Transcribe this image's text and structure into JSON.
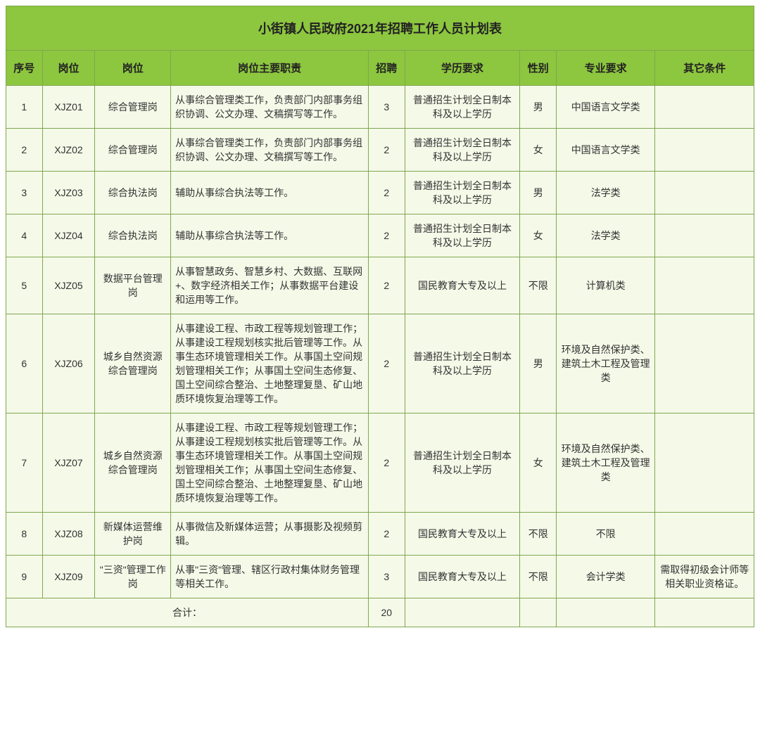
{
  "title": "小街镇人民政府2021年招聘工作人员计划表",
  "columns": [
    "序号",
    "岗位",
    "岗位",
    "岗位主要职责",
    "招聘",
    "学历要求",
    "性别",
    "专业要求",
    "其它条件"
  ],
  "rows": [
    {
      "seq": "1",
      "code": "XJZ01",
      "post": "综合管理岗",
      "duty": "从事综合管理类工作，负责部门内部事务组织协调、公文办理、文稿撰写等工作。",
      "num": "3",
      "edu": "普通招生计划全日制本科及以上学历",
      "sex": "男",
      "major": "中国语言文学类",
      "other": ""
    },
    {
      "seq": "2",
      "code": "XJZ02",
      "post": "综合管理岗",
      "duty": "从事综合管理类工作，负责部门内部事务组织协调、公文办理、文稿撰写等工作。",
      "num": "2",
      "edu": "普通招生计划全日制本科及以上学历",
      "sex": "女",
      "major": "中国语言文学类",
      "other": ""
    },
    {
      "seq": "3",
      "code": "XJZ03",
      "post": "综合执法岗",
      "duty": "辅助从事综合执法等工作。",
      "num": "2",
      "edu": "普通招生计划全日制本科及以上学历",
      "sex": "男",
      "major": "法学类",
      "other": ""
    },
    {
      "seq": "4",
      "code": "XJZ04",
      "post": "综合执法岗",
      "duty": "辅助从事综合执法等工作。",
      "num": "2",
      "edu": "普通招生计划全日制本科及以上学历",
      "sex": "女",
      "major": "法学类",
      "other": ""
    },
    {
      "seq": "5",
      "code": "XJZ05",
      "post": "数据平台管理岗",
      "duty": "从事智慧政务、智慧乡村、大数据、互联网+、数字经济相关工作；从事数据平台建设和运用等工作。",
      "num": "2",
      "edu": "国民教育大专及以上",
      "sex": "不限",
      "major": "计算机类",
      "other": ""
    },
    {
      "seq": "6",
      "code": "XJZ06",
      "post": "城乡自然资源综合管理岗",
      "duty": "从事建设工程、市政工程等规划管理工作；从事建设工程规划核实批后管理等工作。从事生态环境管理相关工作。从事国土空间规划管理相关工作；从事国土空间生态修复、国土空间综合整治、土地整理复垦、矿山地质环境恢复治理等工作。",
      "num": "2",
      "edu": "普通招生计划全日制本科及以上学历",
      "sex": "男",
      "major": "环境及自然保护类、建筑土木工程及管理类",
      "other": ""
    },
    {
      "seq": "7",
      "code": "XJZ07",
      "post": "城乡自然资源综合管理岗",
      "duty": "从事建设工程、市政工程等规划管理工作；从事建设工程规划核实批后管理等工作。从事生态环境管理相关工作。从事国土空间规划管理相关工作；从事国土空间生态修复、国土空间综合整治、土地整理复垦、矿山地质环境恢复治理等工作。",
      "num": "2",
      "edu": "普通招生计划全日制本科及以上学历",
      "sex": "女",
      "major": "环境及自然保护类、建筑土木工程及管理类",
      "other": ""
    },
    {
      "seq": "8",
      "code": "XJZ08",
      "post": "新媒体运营维护岗",
      "duty": "从事微信及新媒体运营；从事摄影及视频剪辑。",
      "num": "2",
      "edu": "国民教育大专及以上",
      "sex": "不限",
      "major": "不限",
      "other": ""
    },
    {
      "seq": "9",
      "code": "XJZ09",
      "post": "\"三资\"管理工作岗",
      "duty": "从事\"三资\"管理、辖区行政村集体财务管理等相关工作。",
      "num": "3",
      "edu": "国民教育大专及以上",
      "sex": "不限",
      "major": "会计学类",
      "other": "需取得初级会计师等相关职业资格证。"
    }
  ],
  "footer": {
    "label": "合计：",
    "total": "20"
  },
  "style": {
    "header_bg": "#8dc63f",
    "body_bg": "#f5f9e8",
    "border": "#7fa850",
    "title_fontsize": 18,
    "header_fontsize": 15,
    "cell_fontsize": 14,
    "col_widths": {
      "seq": 44,
      "code": 64,
      "post": 92,
      "duty": 240,
      "num": 44,
      "edu": 140,
      "sex": 44,
      "major": 120,
      "other": 120
    }
  }
}
